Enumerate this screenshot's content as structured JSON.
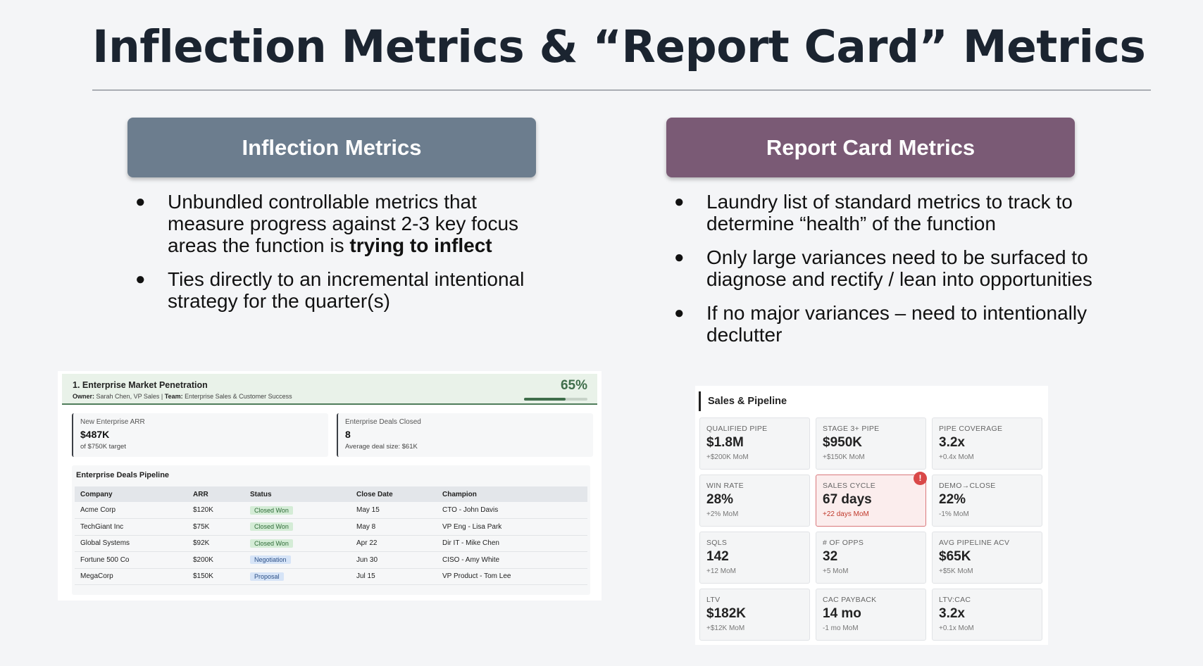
{
  "slide": {
    "title": "Inflection Metrics & “Report Card” Metrics"
  },
  "left": {
    "header": "Inflection Metrics",
    "bullets": [
      {
        "pre": "Unbundled controllable metrics that measure progress against 2-3 key focus areas the function is ",
        "bold": "trying to inflect"
      },
      {
        "pre": "Ties directly to an incremental intentional strategy for the quarter(s)",
        "bold": ""
      }
    ]
  },
  "right": {
    "header": "Report Card Metrics",
    "bullets": [
      "Laundry list of standard metrics to track to determine “health” of the function",
      "Only large variances need to be surfaced to diagnose and rectify / lean into opportunities",
      "If no major variances – need to intentionally declutter"
    ]
  },
  "inflection_panel": {
    "title": "1. Enterprise Market Penetration",
    "owner_label": "Owner:",
    "owner": "Sarah Chen, VP Sales",
    "team_label": "Team:",
    "team": "Enterprise Sales & Customer Success",
    "progress_text": "65%",
    "progress_value": 0.65,
    "kpis": [
      {
        "label": "New Enterprise ARR",
        "value": "$487K",
        "sub": "of $750K target"
      },
      {
        "label": "Enterprise Deals Closed",
        "value": "8",
        "sub": "Average deal size: $61K"
      }
    ],
    "pipeline": {
      "title": "Enterprise Deals Pipeline",
      "columns": [
        "Company",
        "ARR",
        "Status",
        "Close Date",
        "Champion"
      ],
      "rows": [
        {
          "company": "Acme Corp",
          "arr": "$120K",
          "status": "Closed Won",
          "status_type": "won",
          "close": "May 15",
          "champion": "CTO - John Davis"
        },
        {
          "company": "TechGiant Inc",
          "arr": "$75K",
          "status": "Closed Won",
          "status_type": "won",
          "close": "May 8",
          "champion": "VP Eng - Lisa Park"
        },
        {
          "company": "Global Systems",
          "arr": "$92K",
          "status": "Closed Won",
          "status_type": "won",
          "close": "Apr 22",
          "champion": "Dir IT - Mike Chen"
        },
        {
          "company": "Fortune 500 Co",
          "arr": "$200K",
          "status": "Negotiation",
          "status_type": "neg",
          "close": "Jun 30",
          "champion": "CISO - Amy White"
        },
        {
          "company": "MegaCorp",
          "arr": "$150K",
          "status": "Proposal",
          "status_type": "prop",
          "close": "Jul 15",
          "champion": "VP Product - Tom Lee"
        }
      ]
    }
  },
  "report_panel": {
    "title": "Sales & Pipeline",
    "alert_icon": "exclamation-alert-icon",
    "cards": [
      {
        "label": "QUALIFIED PIPE",
        "value": "$1.8M",
        "change": "+$200K MoM",
        "alert": false
      },
      {
        "label": "STAGE 3+ PIPE",
        "value": "$950K",
        "change": "+$150K MoM",
        "alert": false
      },
      {
        "label": "PIPE COVERAGE",
        "value": "3.2x",
        "change": "+0.4x MoM",
        "alert": false
      },
      {
        "label": "WIN RATE",
        "value": "28%",
        "change": "+2% MoM",
        "alert": false
      },
      {
        "label": "SALES CYCLE",
        "value": "67 days",
        "change": "+22 days MoM",
        "alert": true
      },
      {
        "label": "DEMO→CLOSE",
        "value": "22%",
        "change": "-1% MoM",
        "alert": false
      },
      {
        "label": "SQLS",
        "value": "142",
        "change": "+12 MoM",
        "alert": false
      },
      {
        "label": "# OF OPPS",
        "value": "32",
        "change": "+5 MoM",
        "alert": false
      },
      {
        "label": "AVG PIPELINE ACV",
        "value": "$65K",
        "change": "+$5K MoM",
        "alert": false
      },
      {
        "label": "LTV",
        "value": "$182K",
        "change": "+$12K MoM",
        "alert": false
      },
      {
        "label": "CAC PAYBACK",
        "value": "14 mo",
        "change": "-1 mo MoM",
        "alert": false
      },
      {
        "label": "LTV:CAC",
        "value": "3.2x",
        "change": "+0.1x MoM",
        "alert": false
      }
    ]
  }
}
